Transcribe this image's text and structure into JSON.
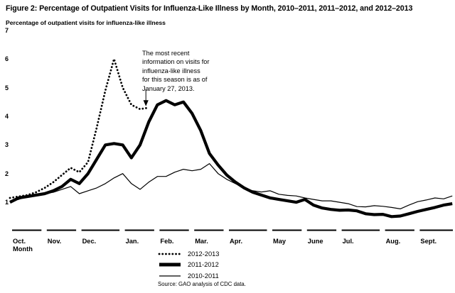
{
  "figure": {
    "title": "Figure 2: Percentage of Outpatient Visits for Influenza-Like Illness by Month, 2010–2011, 2011–2012, and 2012–2013",
    "y_axis_title": "Percentage of outpatient visits for influenza-like illness",
    "x_axis_label": "Month",
    "source": "Source: GAO analysis of CDC data.",
    "annotation": {
      "lines": [
        "The most recent",
        "information on visits for",
        "influenza-like illness",
        "for this season is as of",
        "January 27, 2013."
      ]
    }
  },
  "colors": {
    "ink": "#000000",
    "background": "#ffffff"
  },
  "chart_data": {
    "type": "line",
    "title": "Figure 2: Percentage of Outpatient Visits for Influenza-Like Illness by Month, 2010–2011, 2011–2012, and 2012–2013",
    "ylabel": "Percentage of outpatient visits for influenza-like illness",
    "xlabel": "Month",
    "ylim": [
      0,
      7
    ],
    "y_ticks": [
      7,
      6,
      5,
      4,
      3,
      2,
      1
    ],
    "grid": false,
    "legend_position": "bottom-center",
    "x_unit": "weeks of flu season, October through September",
    "months": [
      {
        "label": "Oct.",
        "weeks": 4
      },
      {
        "label": "Nov.",
        "weeks": 4
      },
      {
        "label": "Dec.",
        "weeks": 5
      },
      {
        "label": "Jan.",
        "weeks": 4
      },
      {
        "label": "Feb.",
        "weeks": 4
      },
      {
        "label": "Mar.",
        "weeks": 4
      },
      {
        "label": "Apr.",
        "weeks": 5
      },
      {
        "label": "May",
        "weeks": 4
      },
      {
        "label": "June",
        "weeks": 4
      },
      {
        "label": "Jul.",
        "weeks": 5
      },
      {
        "label": "Aug.",
        "weeks": 4
      },
      {
        "label": "Sept.",
        "weeks": 5
      }
    ],
    "series": [
      {
        "name": "2012-2013",
        "style": "dotted",
        "note": "ends late January 2013 (annotation target)",
        "values": [
          1.15,
          1.2,
          1.25,
          1.35,
          1.5,
          1.7,
          1.95,
          2.2,
          2.05,
          2.4,
          3.6,
          4.9,
          6.0,
          5.0,
          4.4,
          4.25,
          4.3
        ]
      },
      {
        "name": "2011-2012",
        "style": "solid-thick",
        "values": [
          1.0,
          1.15,
          1.2,
          1.25,
          1.3,
          1.4,
          1.55,
          1.8,
          1.65,
          2.0,
          2.5,
          3.0,
          3.05,
          3.0,
          2.55,
          3.0,
          3.8,
          4.4,
          4.55,
          4.4,
          4.5,
          4.1,
          3.5,
          2.7,
          2.3,
          1.95,
          1.7,
          1.5,
          1.35,
          1.25,
          1.15,
          1.1,
          1.05,
          1.0,
          1.1,
          0.9,
          0.8,
          0.75,
          0.72,
          0.73,
          0.7,
          0.6,
          0.57,
          0.58,
          0.5,
          0.52,
          0.6,
          0.68,
          0.75,
          0.82,
          0.9,
          0.95
        ]
      },
      {
        "name": "2010-2011",
        "style": "solid-thin",
        "values": [
          1.05,
          1.1,
          1.2,
          1.25,
          1.3,
          1.35,
          1.45,
          1.55,
          1.3,
          1.4,
          1.5,
          1.65,
          1.85,
          2.0,
          1.65,
          1.45,
          1.7,
          1.9,
          1.9,
          2.05,
          2.15,
          2.1,
          2.15,
          2.35,
          2.0,
          1.8,
          1.65,
          1.5,
          1.4,
          1.36,
          1.4,
          1.28,
          1.24,
          1.22,
          1.15,
          1.1,
          1.05,
          1.05,
          1.0,
          0.95,
          0.85,
          0.84,
          0.88,
          0.86,
          0.82,
          0.77,
          0.9,
          1.02,
          1.08,
          1.15,
          1.12,
          1.22
        ]
      }
    ]
  }
}
